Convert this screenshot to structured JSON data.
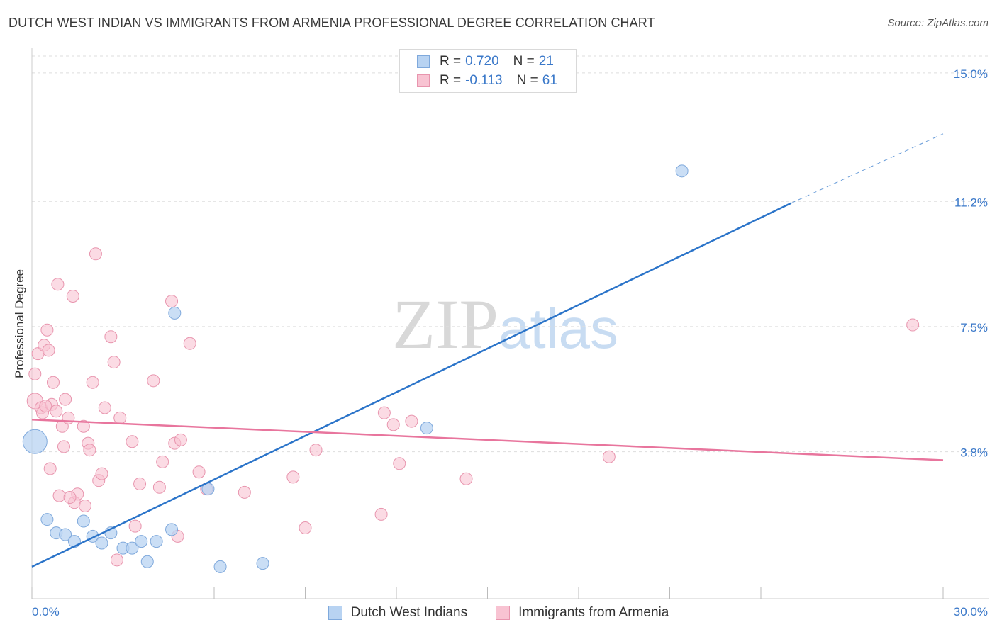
{
  "title": "DUTCH WEST INDIAN VS IMMIGRANTS FROM ARMENIA PROFESSIONAL DEGREE CORRELATION CHART",
  "source": "Source: ZipAtlas.com",
  "watermark": {
    "zip": "ZIP",
    "atlas": "atlas"
  },
  "colors": {
    "blue_fill": "#b8d3f2",
    "blue_stroke": "#7fa9dc",
    "blue_line": "#2b74c9",
    "pink_fill": "#f8c3d2",
    "pink_stroke": "#e895ae",
    "pink_line": "#e8759d",
    "tick_label": "#3a78c9",
    "grid": "#dddddd"
  },
  "legend_top": [
    {
      "r_label": "R =",
      "r_value": "0.720",
      "n_label": "N =",
      "n_value": "21"
    },
    {
      "r_label": "R =",
      "r_value": "-0.113",
      "n_label": "N =",
      "n_value": "61"
    }
  ],
  "legend_bottom": [
    "Dutch West Indians",
    "Immigrants from Armenia"
  ],
  "chart_data": {
    "type": "scatter",
    "title": "DUTCH WEST INDIAN VS IMMIGRANTS FROM ARMENIA PROFESSIONAL DEGREE CORRELATION CHART",
    "xlabel": "",
    "ylabel": "Professional Degree",
    "xlim": [
      0,
      30
    ],
    "ylim": [
      0,
      15.5
    ],
    "x_tick_labels": [
      "0.0%",
      "30.0%"
    ],
    "y_ticks": [
      3.8,
      7.5,
      11.2,
      15.0
    ],
    "y_tick_labels": [
      "3.8%",
      "7.5%",
      "11.2%",
      "15.0%"
    ],
    "grid": "horizontal dashed",
    "legend_placement": "top-center",
    "series": [
      {
        "name": "Dutch West Indians",
        "color": "#b8d3f2",
        "trend": {
          "x": [
            0,
            25
          ],
          "y": [
            0.4,
            11.15
          ],
          "extension_to_x": 30,
          "extension_to_y": 13.2
        },
        "points": [
          {
            "x": 0.1,
            "y": 4.1,
            "large": true
          },
          {
            "x": 0.5,
            "y": 1.8
          },
          {
            "x": 0.8,
            "y": 1.4
          },
          {
            "x": 1.1,
            "y": 1.35
          },
          {
            "x": 1.4,
            "y": 1.15
          },
          {
            "x": 1.7,
            "y": 1.75
          },
          {
            "x": 2.0,
            "y": 1.3
          },
          {
            "x": 2.3,
            "y": 1.1
          },
          {
            "x": 2.6,
            "y": 1.4
          },
          {
            "x": 3.0,
            "y": 0.95
          },
          {
            "x": 3.3,
            "y": 0.95
          },
          {
            "x": 3.6,
            "y": 1.15
          },
          {
            "x": 3.8,
            "y": 0.55
          },
          {
            "x": 4.1,
            "y": 1.15
          },
          {
            "x": 4.6,
            "y": 1.5
          },
          {
            "x": 4.7,
            "y": 7.9
          },
          {
            "x": 5.8,
            "y": 2.7
          },
          {
            "x": 6.2,
            "y": 0.4
          },
          {
            "x": 7.6,
            "y": 0.5
          },
          {
            "x": 13.0,
            "y": 4.5
          },
          {
            "x": 21.4,
            "y": 12.1
          }
        ]
      },
      {
        "name": "Immigrants from Armenia",
        "color": "#f8c3d2",
        "trend": {
          "x": [
            0,
            30
          ],
          "y": [
            4.75,
            3.55
          ]
        },
        "points": [
          {
            "x": 0.1,
            "y": 5.3,
            "size": 1.3
          },
          {
            "x": 0.1,
            "y": 6.1
          },
          {
            "x": 0.2,
            "y": 6.7
          },
          {
            "x": 0.3,
            "y": 5.1
          },
          {
            "x": 0.35,
            "y": 4.95
          },
          {
            "x": 0.4,
            "y": 6.95
          },
          {
            "x": 0.5,
            "y": 7.4
          },
          {
            "x": 0.55,
            "y": 6.8
          },
          {
            "x": 0.6,
            "y": 3.3
          },
          {
            "x": 0.65,
            "y": 5.2
          },
          {
            "x": 0.7,
            "y": 5.85
          },
          {
            "x": 0.8,
            "y": 5.0
          },
          {
            "x": 0.85,
            "y": 8.75
          },
          {
            "x": 0.9,
            "y": 2.5
          },
          {
            "x": 1.0,
            "y": 4.55
          },
          {
            "x": 1.05,
            "y": 3.95
          },
          {
            "x": 1.1,
            "y": 5.35
          },
          {
            "x": 1.2,
            "y": 4.8
          },
          {
            "x": 1.35,
            "y": 8.4
          },
          {
            "x": 1.4,
            "y": 2.3
          },
          {
            "x": 1.5,
            "y": 2.55
          },
          {
            "x": 1.7,
            "y": 4.55
          },
          {
            "x": 1.75,
            "y": 2.2
          },
          {
            "x": 1.85,
            "y": 4.05
          },
          {
            "x": 1.9,
            "y": 3.85
          },
          {
            "x": 2.0,
            "y": 5.85
          },
          {
            "x": 2.1,
            "y": 9.65
          },
          {
            "x": 2.2,
            "y": 2.95
          },
          {
            "x": 2.3,
            "y": 3.15
          },
          {
            "x": 2.4,
            "y": 5.1
          },
          {
            "x": 2.6,
            "y": 7.2
          },
          {
            "x": 2.7,
            "y": 6.45
          },
          {
            "x": 2.8,
            "y": 0.6
          },
          {
            "x": 2.9,
            "y": 4.8
          },
          {
            "x": 3.3,
            "y": 4.1
          },
          {
            "x": 3.4,
            "y": 1.6
          },
          {
            "x": 3.55,
            "y": 2.85
          },
          {
            "x": 4.0,
            "y": 5.9
          },
          {
            "x": 4.2,
            "y": 2.75
          },
          {
            "x": 4.3,
            "y": 3.5
          },
          {
            "x": 4.6,
            "y": 8.25
          },
          {
            "x": 4.7,
            "y": 4.05
          },
          {
            "x": 4.8,
            "y": 1.3
          },
          {
            "x": 5.2,
            "y": 7.0
          },
          {
            "x": 5.5,
            "y": 3.2
          },
          {
            "x": 5.75,
            "y": 2.7
          },
          {
            "x": 7.0,
            "y": 2.6
          },
          {
            "x": 8.6,
            "y": 3.05
          },
          {
            "x": 9.0,
            "y": 1.55
          },
          {
            "x": 9.35,
            "y": 3.85
          },
          {
            "x": 11.5,
            "y": 1.95
          },
          {
            "x": 11.6,
            "y": 4.95
          },
          {
            "x": 11.9,
            "y": 4.6
          },
          {
            "x": 12.1,
            "y": 3.45
          },
          {
            "x": 12.5,
            "y": 4.7
          },
          {
            "x": 14.3,
            "y": 3.0
          },
          {
            "x": 19.0,
            "y": 3.65
          },
          {
            "x": 29.0,
            "y": 7.55
          },
          {
            "x": 4.9,
            "y": 4.15
          },
          {
            "x": 1.25,
            "y": 2.45
          },
          {
            "x": 0.45,
            "y": 5.15
          }
        ]
      }
    ]
  }
}
